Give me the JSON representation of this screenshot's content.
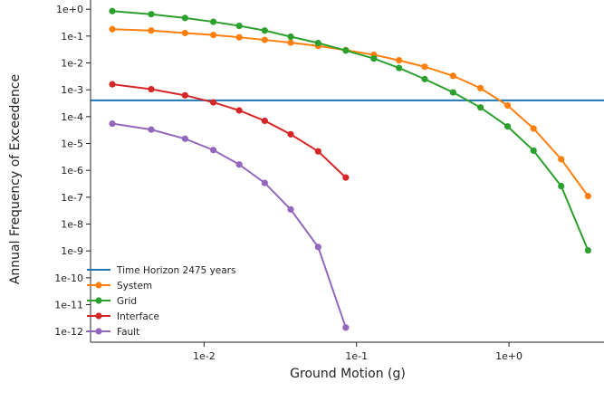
{
  "chart_data": {
    "type": "line",
    "title": "",
    "xlabel": "Ground Motion (g)",
    "ylabel": "Annual Frequency of Exceedence",
    "x_scale": "log",
    "y_scale": "log",
    "xlim": [
      0.0018,
      4.2
    ],
    "ylim": [
      4e-13,
      2.2
    ],
    "x_ticks": [
      {
        "value": 0.01,
        "label": "1e-2"
      },
      {
        "value": 0.1,
        "label": "1e-1"
      },
      {
        "value": 1,
        "label": "1e+0"
      }
    ],
    "y_ticks": [
      {
        "value": 1,
        "label": "1e+0"
      },
      {
        "value": 0.1,
        "label": "1e-1"
      },
      {
        "value": 0.01,
        "label": "1e-2"
      },
      {
        "value": 0.001,
        "label": "1e-3"
      },
      {
        "value": 0.0001,
        "label": "1e-4"
      },
      {
        "value": 1e-05,
        "label": "1e-5"
      },
      {
        "value": 1e-06,
        "label": "1e-6"
      },
      {
        "value": 1e-07,
        "label": "1e-7"
      },
      {
        "value": 1e-08,
        "label": "1e-8"
      },
      {
        "value": 1e-09,
        "label": "1e-9"
      },
      {
        "value": 1e-10,
        "label": "1e-10"
      },
      {
        "value": 1e-11,
        "label": "1e-11"
      },
      {
        "value": 1e-12,
        "label": "1e-12"
      }
    ],
    "grid": false,
    "legend_position": "bottom-left",
    "reference_line": {
      "name": "Time Horizon 2475 years",
      "y": 0.000404,
      "color": "#1f77b4"
    },
    "series": [
      {
        "name": "System",
        "color": "#ff7f0e",
        "x": [
          0.0025,
          0.0045,
          0.0075,
          0.0115,
          0.017,
          0.025,
          0.037,
          0.056,
          0.085,
          0.13,
          0.19,
          0.28,
          0.43,
          0.65,
          0.98,
          1.45,
          2.2,
          3.3
        ],
        "y": [
          0.18,
          0.16,
          0.13,
          0.11,
          0.09,
          0.072,
          0.057,
          0.043,
          0.03,
          0.02,
          0.0125,
          0.0072,
          0.0033,
          0.00115,
          0.00026,
          3.6e-05,
          2.6e-06,
          1.1e-07
        ]
      },
      {
        "name": "Grid",
        "color": "#2ca02c",
        "x": [
          0.0025,
          0.0045,
          0.0075,
          0.0115,
          0.017,
          0.025,
          0.037,
          0.056,
          0.085,
          0.13,
          0.19,
          0.28,
          0.43,
          0.65,
          0.98,
          1.45,
          2.2,
          3.3
        ],
        "y": [
          0.85,
          0.65,
          0.47,
          0.34,
          0.24,
          0.16,
          0.095,
          0.055,
          0.029,
          0.0145,
          0.0065,
          0.0025,
          0.0008,
          0.00022,
          4.3e-05,
          5.4e-06,
          2.6e-07,
          1.05e-09
        ]
      },
      {
        "name": "Interface",
        "color": "#d62728",
        "x": [
          0.0025,
          0.0045,
          0.0075,
          0.0115,
          0.017,
          0.025,
          0.037,
          0.056,
          0.085
        ],
        "y": [
          0.0016,
          0.00105,
          0.00062,
          0.00034,
          0.00017,
          7e-05,
          2.2e-05,
          5.1e-06,
          5.4e-07
        ]
      },
      {
        "name": "Fault",
        "color": "#9467bd",
        "x": [
          0.0025,
          0.0045,
          0.0075,
          0.0115,
          0.017,
          0.025,
          0.037,
          0.056,
          0.085
        ],
        "y": [
          5.5e-05,
          3.3e-05,
          1.5e-05,
          5.7e-06,
          1.65e-06,
          3.4e-07,
          3.5e-08,
          1.4e-09,
          1.4e-12
        ]
      }
    ]
  }
}
